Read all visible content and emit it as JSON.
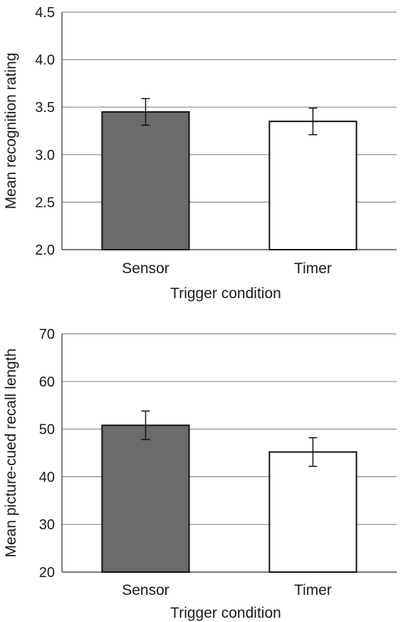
{
  "chart_data": [
    {
      "type": "bar",
      "categories": [
        "Sensor",
        "Timer"
      ],
      "values": [
        3.45,
        3.35
      ],
      "error": [
        0.14,
        0.14
      ],
      "xlabel": "Trigger condition",
      "ylabel": "Mean recognition rating",
      "ylim": [
        2.0,
        4.5
      ],
      "yticks": [
        "2.0",
        "2.5",
        "3.0",
        "3.5",
        "4.0",
        "4.5"
      ],
      "grid": "horizontal",
      "colors": [
        "#6b6b6b",
        "#ffffff"
      ]
    },
    {
      "type": "bar",
      "categories": [
        "Sensor",
        "Timer"
      ],
      "values": [
        50.8,
        45.2
      ],
      "error": [
        3.0,
        3.0
      ],
      "xlabel": "Trigger condition",
      "ylabel": "Mean picture-cued recall length",
      "ylim": [
        20,
        70
      ],
      "yticks": [
        "20",
        "30",
        "40",
        "50",
        "60",
        "70"
      ],
      "grid": "horizontal",
      "colors": [
        "#6b6b6b",
        "#ffffff"
      ]
    }
  ]
}
